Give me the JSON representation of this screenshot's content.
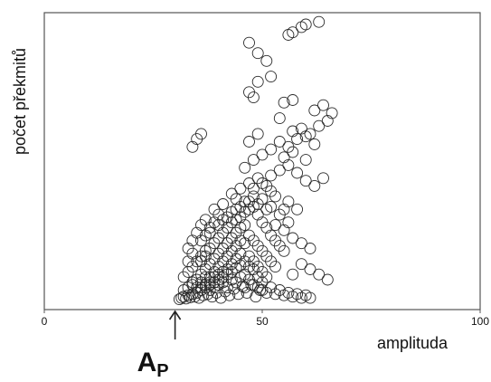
{
  "chart_data": {
    "type": "scatter",
    "title": "",
    "xlabel": "amplituda",
    "ylabel": "počet překmitů",
    "xlim": [
      0,
      100
    ],
    "x_ticks": [
      0,
      50,
      100
    ],
    "y_ticks": [],
    "grid": false,
    "legend": "none",
    "marker": "open-circle",
    "annotation": {
      "label": "A",
      "label_subscript": "P",
      "x": 30
    },
    "series": [
      {
        "points": [
          [
            31,
            1
          ],
          [
            31.5,
            2
          ],
          [
            32,
            3
          ],
          [
            32.5,
            1.5
          ],
          [
            33,
            4
          ],
          [
            33.5,
            2.5
          ],
          [
            34,
            5
          ],
          [
            34.5,
            3
          ],
          [
            35,
            6
          ],
          [
            35.5,
            2
          ],
          [
            36,
            8
          ],
          [
            36.5,
            4
          ],
          [
            37,
            10
          ],
          [
            37.5,
            5
          ],
          [
            38,
            12
          ],
          [
            38.5,
            3
          ],
          [
            39,
            14
          ],
          [
            39.5,
            6
          ],
          [
            40,
            16
          ],
          [
            40.5,
            2
          ],
          [
            41,
            18
          ],
          [
            41.5,
            7
          ],
          [
            42,
            20
          ],
          [
            42.5,
            4
          ],
          [
            43,
            22
          ],
          [
            43.5,
            9
          ],
          [
            44,
            25
          ],
          [
            44.5,
            5
          ],
          [
            45,
            27
          ],
          [
            45.5,
            11
          ],
          [
            46,
            30
          ],
          [
            46.5,
            6
          ],
          [
            47,
            26
          ],
          [
            47.5,
            12
          ],
          [
            48,
            24
          ],
          [
            48.5,
            3
          ],
          [
            49,
            18
          ],
          [
            49.5,
            8
          ],
          [
            50,
            14
          ],
          [
            51,
            6
          ],
          [
            52,
            10
          ],
          [
            53,
            5
          ],
          [
            54,
            8
          ],
          [
            55,
            4
          ],
          [
            56,
            6
          ],
          [
            57,
            3
          ],
          [
            58,
            5
          ],
          [
            59,
            2
          ],
          [
            60,
            4
          ],
          [
            61,
            2
          ],
          [
            34,
            12
          ],
          [
            35,
            16
          ],
          [
            36,
            20
          ],
          [
            37,
            24
          ],
          [
            38,
            28
          ],
          [
            39,
            32
          ],
          [
            40,
            36
          ],
          [
            41,
            40
          ],
          [
            42,
            44
          ],
          [
            43,
            48
          ],
          [
            44,
            52
          ],
          [
            45,
            56
          ],
          [
            46,
            58
          ],
          [
            47,
            50
          ],
          [
            48,
            46
          ],
          [
            49,
            42
          ],
          [
            50,
            38
          ],
          [
            51,
            34
          ],
          [
            52,
            30
          ],
          [
            53,
            26
          ],
          [
            36,
            30
          ],
          [
            37,
            34
          ],
          [
            38,
            40
          ],
          [
            39,
            44
          ],
          [
            40,
            48
          ],
          [
            41,
            52
          ],
          [
            42,
            56
          ],
          [
            43,
            60
          ],
          [
            44,
            62
          ],
          [
            45,
            64
          ],
          [
            46,
            68
          ],
          [
            47,
            70
          ],
          [
            48,
            72
          ],
          [
            49,
            66
          ],
          [
            50,
            60
          ],
          [
            51,
            56
          ],
          [
            52,
            50
          ],
          [
            53,
            46
          ],
          [
            54,
            42
          ],
          [
            55,
            38
          ],
          [
            38,
            52
          ],
          [
            40,
            58
          ],
          [
            42,
            64
          ],
          [
            44,
            70
          ],
          [
            46,
            76
          ],
          [
            48,
            80
          ],
          [
            50,
            78
          ],
          [
            52,
            72
          ],
          [
            54,
            66
          ],
          [
            56,
            60
          ],
          [
            33,
            40
          ],
          [
            34,
            46
          ],
          [
            35,
            52
          ],
          [
            36,
            58
          ],
          [
            40,
            66
          ],
          [
            44,
            78
          ],
          [
            48,
            86
          ],
          [
            52,
            84
          ],
          [
            56,
            76
          ],
          [
            58,
            70
          ],
          [
            50,
            90
          ],
          [
            52,
            96
          ],
          [
            54,
            100
          ],
          [
            56,
            104
          ],
          [
            58,
            98
          ],
          [
            60,
            92
          ],
          [
            62,
            88
          ],
          [
            64,
            94
          ],
          [
            55,
            110
          ],
          [
            57,
            114
          ],
          [
            48,
            108
          ],
          [
            50,
            112
          ],
          [
            52,
            116
          ],
          [
            54,
            122
          ],
          [
            56,
            118
          ],
          [
            58,
            124
          ],
          [
            60,
            126
          ],
          [
            62,
            120
          ],
          [
            46,
            102
          ],
          [
            60,
            108
          ],
          [
            34,
            118
          ],
          [
            35,
            124
          ],
          [
            36,
            128
          ],
          [
            47,
            122
          ],
          [
            49,
            128
          ],
          [
            57,
            130
          ],
          [
            59,
            132
          ],
          [
            61,
            128
          ],
          [
            63,
            134
          ],
          [
            65,
            138
          ],
          [
            47,
            160
          ],
          [
            48,
            156
          ],
          [
            49,
            168
          ],
          [
            52,
            172
          ],
          [
            55,
            152
          ],
          [
            57,
            154
          ],
          [
            54,
            140
          ],
          [
            62,
            146
          ],
          [
            64,
            150
          ],
          [
            66,
            144
          ],
          [
            49,
            190
          ],
          [
            51,
            184
          ],
          [
            47,
            198
          ],
          [
            56,
            204
          ],
          [
            57,
            206
          ],
          [
            59,
            210
          ],
          [
            60,
            212
          ],
          [
            63,
            214
          ],
          [
            34,
            36
          ],
          [
            33,
            30
          ],
          [
            32,
            18
          ],
          [
            33,
            22
          ],
          [
            34,
            26
          ],
          [
            35,
            30
          ],
          [
            36,
            34
          ],
          [
            37,
            38
          ],
          [
            38,
            18
          ],
          [
            39,
            22
          ],
          [
            40,
            26
          ],
          [
            41,
            30
          ],
          [
            42,
            34
          ],
          [
            43,
            38
          ],
          [
            44,
            42
          ],
          [
            45,
            46
          ],
          [
            46,
            20
          ],
          [
            47,
            34
          ],
          [
            48,
            30
          ],
          [
            49,
            26
          ],
          [
            50,
            22
          ],
          [
            51,
            18
          ],
          [
            37,
            62
          ],
          [
            39,
            70
          ],
          [
            41,
            74
          ],
          [
            43,
            82
          ],
          [
            45,
            86
          ],
          [
            47,
            90
          ],
          [
            49,
            94
          ],
          [
            51,
            88
          ],
          [
            53,
            80
          ],
          [
            55,
            70
          ],
          [
            32,
            8
          ],
          [
            33,
            10
          ],
          [
            34,
            14
          ],
          [
            35,
            10
          ],
          [
            36,
            14
          ],
          [
            37,
            18
          ],
          [
            38,
            8
          ],
          [
            39,
            10
          ],
          [
            40,
            12
          ],
          [
            41,
            14
          ],
          [
            42,
            10
          ],
          [
            43,
            16
          ],
          [
            44,
            14
          ],
          [
            45,
            18
          ],
          [
            46,
            10
          ],
          [
            47,
            16
          ],
          [
            48,
            12
          ],
          [
            49,
            10
          ],
          [
            50,
            8
          ],
          [
            45,
            36
          ],
          [
            46,
            44
          ],
          [
            44,
            32
          ],
          [
            43,
            28
          ],
          [
            42,
            24
          ],
          [
            41,
            22
          ],
          [
            40,
            20
          ],
          [
            39,
            18
          ],
          [
            38,
            14
          ],
          [
            37,
            12
          ],
          [
            36,
            10
          ],
          [
            53,
            58
          ],
          [
            55,
            54
          ],
          [
            57,
            48
          ],
          [
            59,
            44
          ],
          [
            61,
            40
          ],
          [
            59,
            28
          ],
          [
            61,
            24
          ],
          [
            63,
            20
          ],
          [
            65,
            16
          ],
          [
            57,
            20
          ],
          [
            36,
            46
          ],
          [
            37,
            50
          ],
          [
            38,
            56
          ],
          [
            39,
            60
          ],
          [
            41,
            62
          ],
          [
            43,
            68
          ],
          [
            45,
            72
          ],
          [
            47,
            76
          ],
          [
            49,
            74
          ],
          [
            51,
            70
          ]
        ]
      }
    ]
  }
}
